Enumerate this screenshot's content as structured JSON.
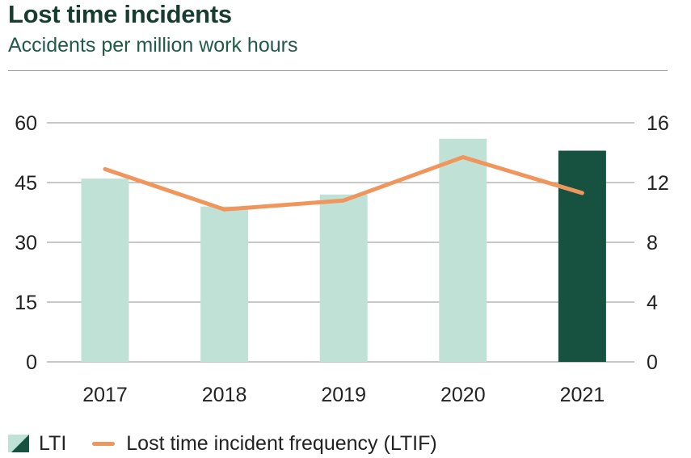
{
  "header": {
    "title": "Lost time incidents",
    "subtitle": "Accidents per million work hours"
  },
  "legend": {
    "lti_label": "LTI",
    "ltif_label": "Lost time incident frequency (LTIF)"
  },
  "colors": {
    "bar_light": "#c0e2d6",
    "bar_dark": "#175240",
    "line": "#f0955b",
    "grid": "#b5b5b5",
    "text": "#222222"
  },
  "chart_data": {
    "type": "bar",
    "categories": [
      "2017",
      "2018",
      "2019",
      "2020",
      "2021"
    ],
    "series": [
      {
        "name": "LTI",
        "type": "bar",
        "axis": "left",
        "values": [
          46,
          39,
          42,
          56,
          53
        ]
      },
      {
        "name": "Lost time incident frequency (LTIF)",
        "type": "line",
        "axis": "right",
        "values": [
          12.9,
          10.2,
          10.8,
          13.7,
          11.3
        ]
      }
    ],
    "highlight_category": "2021",
    "ylim_left": [
      0,
      60
    ],
    "yticks_left": [
      "0",
      "15",
      "30",
      "45",
      "60"
    ],
    "ylim_right": [
      0,
      16
    ],
    "yticks_right": [
      "0",
      "4",
      "8",
      "12",
      "16"
    ],
    "grid": true,
    "legend_position": "bottom-left"
  }
}
